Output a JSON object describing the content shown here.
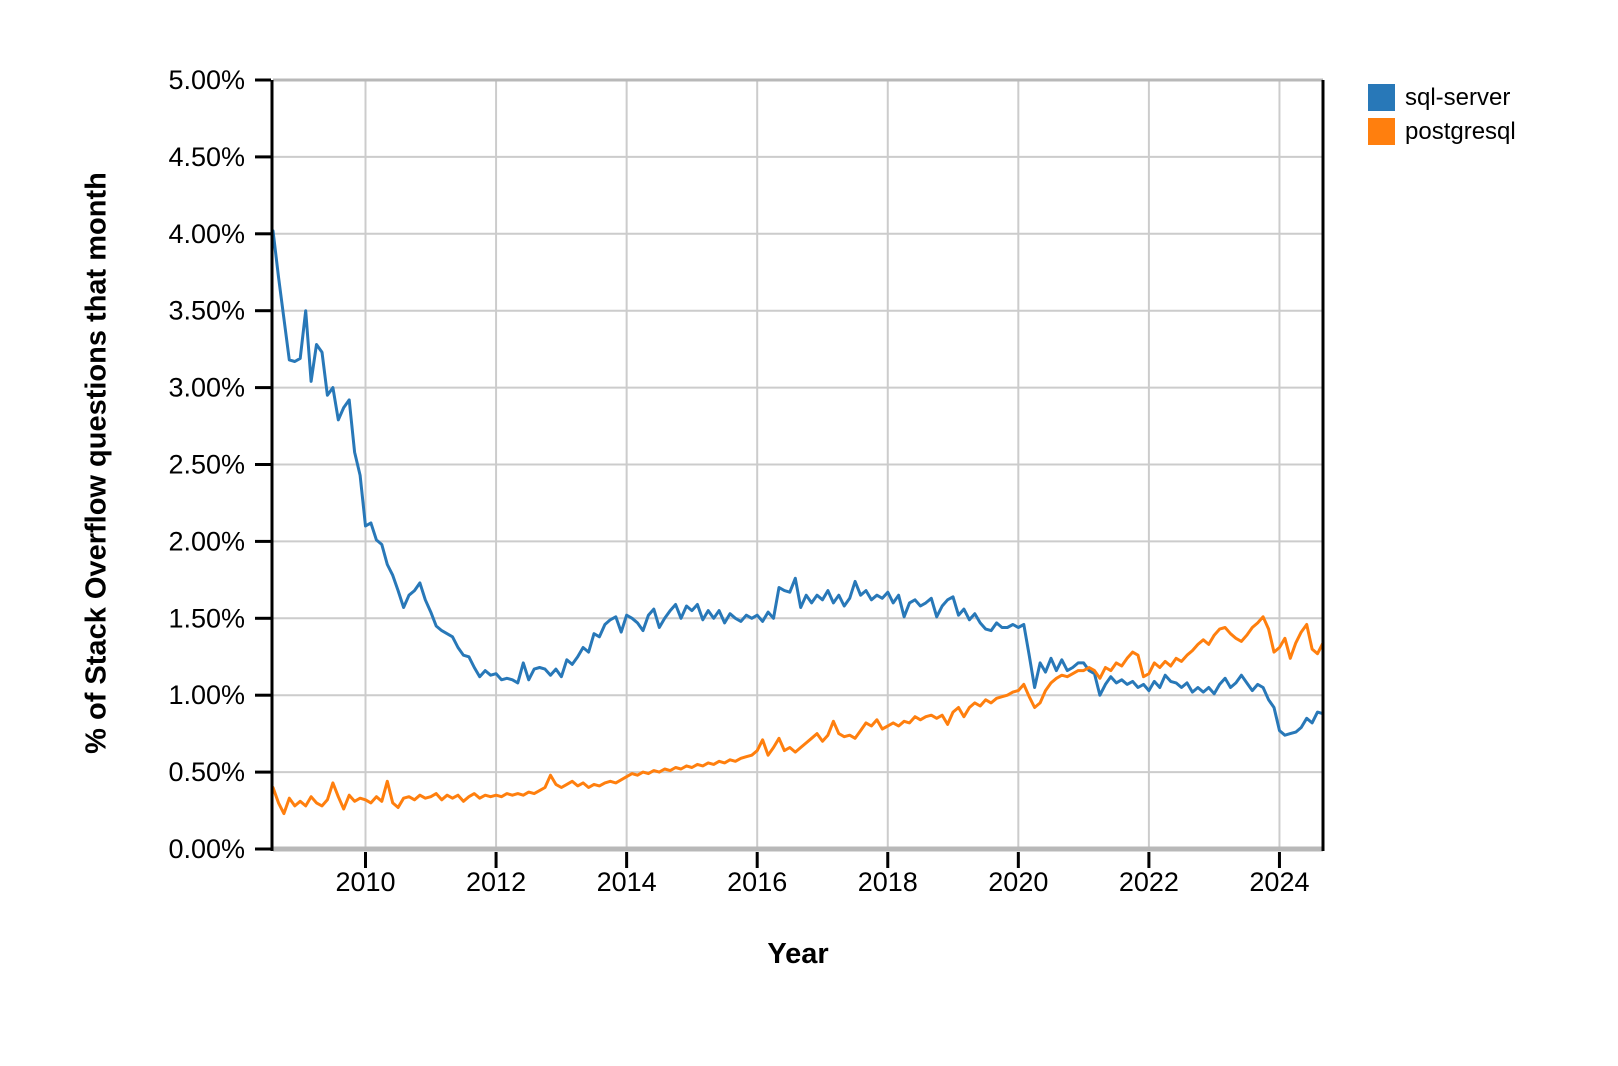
{
  "chart_data": {
    "type": "line",
    "title": "",
    "xlabel": "Year",
    "ylabel": "% of Stack Overflow questions that month",
    "grid": true,
    "legend_position": "top-right",
    "x_axis": {
      "min": 2008.583,
      "max": 2024.667,
      "ticks": [
        {
          "value": 2010,
          "label": "2010"
        },
        {
          "value": 2012,
          "label": "2012"
        },
        {
          "value": 2014,
          "label": "2014"
        },
        {
          "value": 2016,
          "label": "2016"
        },
        {
          "value": 2018,
          "label": "2018"
        },
        {
          "value": 2020,
          "label": "2020"
        },
        {
          "value": 2022,
          "label": "2022"
        },
        {
          "value": 2024,
          "label": "2024"
        }
      ]
    },
    "y_axis": {
      "min": 0,
      "max": 5,
      "ticks": [
        {
          "value": 0.0,
          "label": "0.00%"
        },
        {
          "value": 0.5,
          "label": "0.50%"
        },
        {
          "value": 1.0,
          "label": "1.00%"
        },
        {
          "value": 1.5,
          "label": "1.50%"
        },
        {
          "value": 2.0,
          "label": "2.00%"
        },
        {
          "value": 2.5,
          "label": "2.50%"
        },
        {
          "value": 3.0,
          "label": "3.00%"
        },
        {
          "value": 3.5,
          "label": "3.50%"
        },
        {
          "value": 4.0,
          "label": "4.00%"
        },
        {
          "value": 4.5,
          "label": "4.50%"
        },
        {
          "value": 5.0,
          "label": "5.00%"
        }
      ]
    },
    "series_start": {
      "year": 2008,
      "month": 8
    },
    "series": [
      {
        "name": "sql-server",
        "color": "#2878b8",
        "values": [
          4.02,
          3.72,
          3.45,
          3.18,
          3.17,
          3.19,
          3.5,
          3.04,
          3.28,
          3.23,
          2.95,
          3.0,
          2.79,
          2.87,
          2.92,
          2.58,
          2.43,
          2.1,
          2.12,
          2.01,
          1.98,
          1.85,
          1.78,
          1.68,
          1.57,
          1.65,
          1.68,
          1.73,
          1.62,
          1.54,
          1.45,
          1.42,
          1.4,
          1.38,
          1.31,
          1.26,
          1.25,
          1.18,
          1.12,
          1.16,
          1.13,
          1.14,
          1.1,
          1.11,
          1.1,
          1.08,
          1.21,
          1.1,
          1.17,
          1.18,
          1.17,
          1.13,
          1.17,
          1.12,
          1.23,
          1.2,
          1.25,
          1.31,
          1.28,
          1.4,
          1.38,
          1.46,
          1.49,
          1.51,
          1.41,
          1.52,
          1.5,
          1.47,
          1.42,
          1.52,
          1.56,
          1.44,
          1.5,
          1.55,
          1.59,
          1.5,
          1.58,
          1.55,
          1.59,
          1.49,
          1.55,
          1.5,
          1.55,
          1.47,
          1.53,
          1.5,
          1.48,
          1.52,
          1.5,
          1.52,
          1.48,
          1.54,
          1.5,
          1.7,
          1.68,
          1.67,
          1.76,
          1.57,
          1.65,
          1.6,
          1.65,
          1.62,
          1.68,
          1.6,
          1.65,
          1.58,
          1.63,
          1.74,
          1.65,
          1.68,
          1.62,
          1.65,
          1.63,
          1.67,
          1.6,
          1.65,
          1.51,
          1.6,
          1.62,
          1.58,
          1.6,
          1.63,
          1.51,
          1.58,
          1.62,
          1.64,
          1.52,
          1.56,
          1.49,
          1.53,
          1.47,
          1.43,
          1.42,
          1.47,
          1.44,
          1.44,
          1.46,
          1.44,
          1.46,
          1.26,
          1.05,
          1.21,
          1.15,
          1.24,
          1.16,
          1.23,
          1.16,
          1.18,
          1.21,
          1.21,
          1.16,
          1.14,
          1.0,
          1.07,
          1.12,
          1.08,
          1.1,
          1.07,
          1.09,
          1.05,
          1.07,
          1.03,
          1.09,
          1.05,
          1.13,
          1.09,
          1.08,
          1.05,
          1.08,
          1.02,
          1.05,
          1.02,
          1.05,
          1.01,
          1.07,
          1.11,
          1.05,
          1.08,
          1.13,
          1.08,
          1.03,
          1.07,
          1.05,
          0.97,
          0.92,
          0.77,
          0.74,
          0.75,
          0.76,
          0.79,
          0.85,
          0.82,
          0.89,
          0.88
        ]
      },
      {
        "name": "postgresql",
        "color": "#ff7f0e",
        "values": [
          0.4,
          0.3,
          0.23,
          0.33,
          0.28,
          0.31,
          0.28,
          0.34,
          0.3,
          0.28,
          0.32,
          0.43,
          0.34,
          0.26,
          0.35,
          0.31,
          0.33,
          0.32,
          0.3,
          0.34,
          0.31,
          0.44,
          0.3,
          0.27,
          0.33,
          0.34,
          0.32,
          0.35,
          0.33,
          0.34,
          0.36,
          0.32,
          0.35,
          0.33,
          0.35,
          0.31,
          0.34,
          0.36,
          0.33,
          0.35,
          0.34,
          0.35,
          0.34,
          0.36,
          0.35,
          0.36,
          0.35,
          0.37,
          0.36,
          0.38,
          0.4,
          0.48,
          0.42,
          0.4,
          0.42,
          0.44,
          0.41,
          0.43,
          0.4,
          0.42,
          0.41,
          0.43,
          0.44,
          0.43,
          0.45,
          0.47,
          0.49,
          0.48,
          0.5,
          0.49,
          0.51,
          0.5,
          0.52,
          0.51,
          0.53,
          0.52,
          0.54,
          0.53,
          0.55,
          0.54,
          0.56,
          0.55,
          0.57,
          0.56,
          0.58,
          0.57,
          0.59,
          0.6,
          0.61,
          0.64,
          0.71,
          0.61,
          0.66,
          0.72,
          0.64,
          0.66,
          0.63,
          0.66,
          0.69,
          0.72,
          0.75,
          0.7,
          0.74,
          0.83,
          0.75,
          0.73,
          0.74,
          0.72,
          0.77,
          0.82,
          0.8,
          0.84,
          0.78,
          0.8,
          0.82,
          0.8,
          0.83,
          0.82,
          0.86,
          0.84,
          0.86,
          0.87,
          0.85,
          0.87,
          0.81,
          0.89,
          0.92,
          0.86,
          0.92,
          0.95,
          0.93,
          0.97,
          0.95,
          0.98,
          0.99,
          1.0,
          1.02,
          1.03,
          1.07,
          0.99,
          0.92,
          0.95,
          1.03,
          1.08,
          1.11,
          1.13,
          1.12,
          1.14,
          1.16,
          1.16,
          1.18,
          1.16,
          1.11,
          1.18,
          1.16,
          1.21,
          1.19,
          1.24,
          1.28,
          1.26,
          1.12,
          1.14,
          1.21,
          1.18,
          1.22,
          1.19,
          1.24,
          1.22,
          1.26,
          1.29,
          1.33,
          1.36,
          1.33,
          1.39,
          1.43,
          1.44,
          1.4,
          1.37,
          1.35,
          1.39,
          1.44,
          1.47,
          1.51,
          1.43,
          1.28,
          1.31,
          1.37,
          1.24,
          1.34,
          1.41,
          1.46,
          1.3,
          1.27,
          1.34
        ]
      }
    ]
  }
}
